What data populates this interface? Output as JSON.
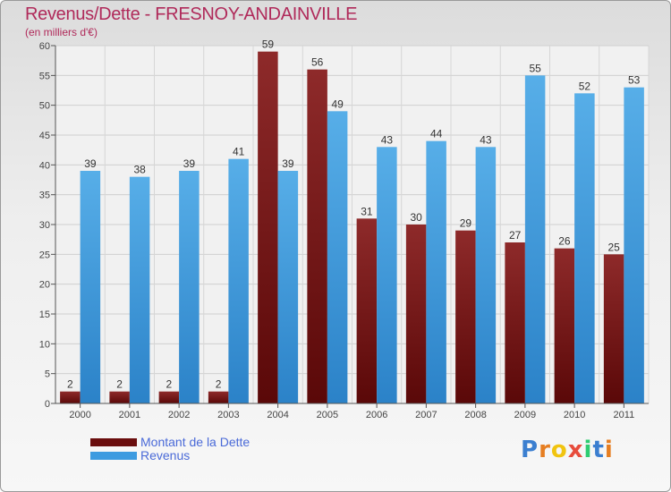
{
  "title": "Revenus/Dette - FRESNOY-ANDAINVILLE",
  "subtitle": "(en milliers d'€)",
  "logo": {
    "letters": [
      "P",
      "r",
      "o",
      "x",
      "i",
      "t",
      "i"
    ],
    "colors": [
      "#3b7fd0",
      "#e67e22",
      "#f1c40f",
      "#e74c3c",
      "#2ecc71",
      "#3b7fd0",
      "#e67e22"
    ]
  },
  "chart_data": {
    "type": "bar",
    "title": "Revenus/Dette - FRESNOY-ANDAINVILLE",
    "subtitle": "(en milliers d'€)",
    "categories": [
      "2000",
      "2001",
      "2002",
      "2003",
      "2004",
      "2005",
      "2006",
      "2007",
      "2008",
      "2009",
      "2010",
      "2011"
    ],
    "series": [
      {
        "name": "Montant de la Dette",
        "color": "#7a1515",
        "values": [
          2,
          2,
          2,
          2,
          59,
          56,
          31,
          30,
          29,
          27,
          26,
          25
        ]
      },
      {
        "name": "Revenus",
        "color": "#3d9be0",
        "values": [
          39,
          38,
          39,
          41,
          39,
          49,
          43,
          44,
          43,
          55,
          52,
          53
        ]
      }
    ],
    "ylim": [
      0,
      60
    ],
    "yticks": [
      0,
      5,
      10,
      15,
      20,
      25,
      30,
      35,
      40,
      45,
      50,
      55,
      60
    ],
    "grid": true,
    "legend_position": "bottom-left"
  }
}
